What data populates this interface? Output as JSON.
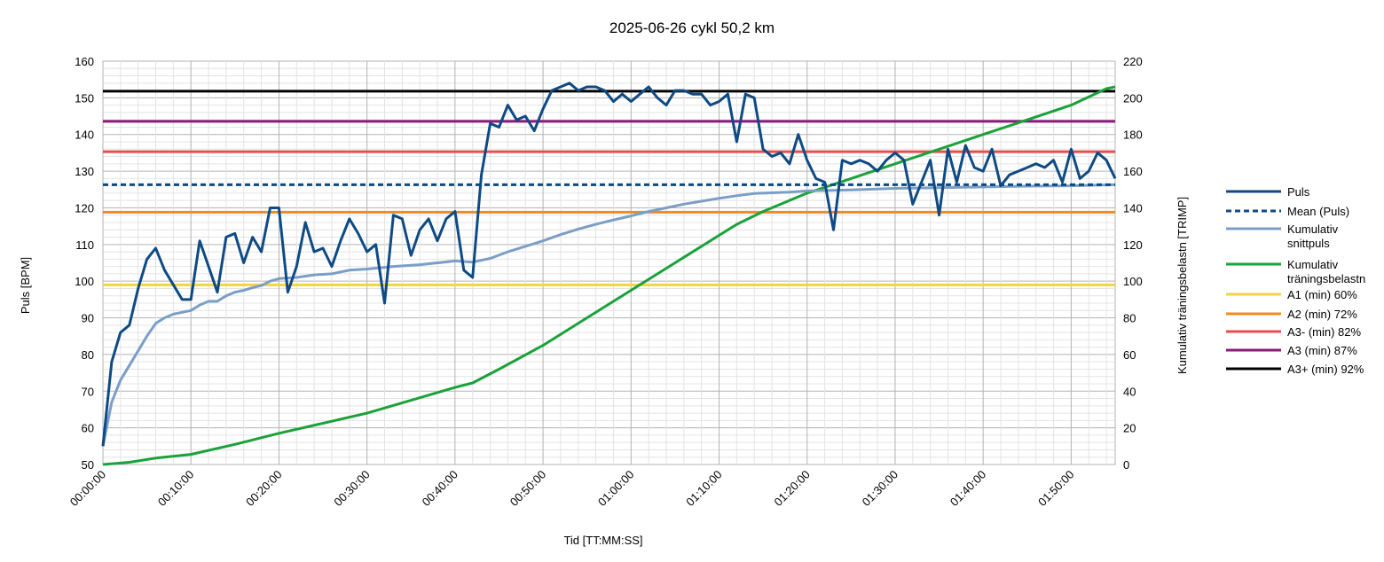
{
  "chart_data": {
    "type": "line",
    "title": "2025-06-26 cykl 50,2 km",
    "xlabel": "Tid [TT:MM:SS]",
    "ylabel": "Puls [BPM]",
    "y2label": "Kumulativ träningsbelastn [TRIMP]",
    "ylim": [
      50,
      160
    ],
    "y2lim": [
      0,
      220
    ],
    "xlim_minutes": [
      0,
      115
    ],
    "y_ticks": [
      "50",
      "60",
      "70",
      "80",
      "90",
      "100",
      "110",
      "120",
      "130",
      "140",
      "150",
      "160"
    ],
    "y2_ticks": [
      "0",
      "20",
      "40",
      "60",
      "80",
      "100",
      "120",
      "140",
      "160",
      "180",
      "200",
      "220"
    ],
    "x_ticks": [
      "00:00:00",
      "00:10:00",
      "00:20:00",
      "00:30:00",
      "00:40:00",
      "00:50:00",
      "01:00:00",
      "01:10:00",
      "01:20:00",
      "01:30:00",
      "01:40:00",
      "01:50:00"
    ],
    "grid": true,
    "legend_position": "right",
    "series": [
      {
        "name": "Puls",
        "axis": "left",
        "color": "#0e4a84",
        "style": "solid",
        "x": [
          0,
          1,
          2,
          3,
          4,
          5,
          6,
          7,
          8,
          9,
          10,
          11,
          12,
          13,
          14,
          15,
          16,
          17,
          18,
          19,
          20,
          21,
          22,
          23,
          24,
          25,
          26,
          27,
          28,
          29,
          30,
          31,
          32,
          33,
          34,
          35,
          36,
          37,
          38,
          39,
          40,
          41,
          42,
          43,
          44,
          45,
          46,
          47,
          48,
          49,
          50,
          51,
          52,
          53,
          54,
          55,
          56,
          57,
          58,
          59,
          60,
          61,
          62,
          63,
          64,
          65,
          66,
          67,
          68,
          69,
          70,
          71,
          72,
          73,
          74,
          75,
          76,
          77,
          78,
          79,
          80,
          81,
          82,
          83,
          84,
          85,
          86,
          87,
          88,
          89,
          90,
          91,
          92,
          93,
          94,
          95,
          96,
          97,
          98,
          99,
          100,
          101,
          102,
          103,
          104,
          105,
          106,
          107,
          108,
          109,
          110,
          111,
          112,
          113,
          114,
          115
        ],
        "y": [
          55,
          78,
          86,
          88,
          98,
          106,
          109,
          103,
          99,
          95,
          95,
          111,
          104,
          97,
          112,
          113,
          105,
          112,
          108,
          120,
          120,
          97,
          104,
          116,
          108,
          109,
          104,
          111,
          117,
          113,
          108,
          110,
          94,
          118,
          117,
          107,
          114,
          117,
          111,
          117,
          119,
          103,
          101,
          129,
          143,
          142,
          148,
          144,
          145,
          141,
          147,
          152,
          153,
          154,
          152,
          153,
          153,
          152,
          149,
          151,
          149,
          151,
          153,
          150,
          148,
          152,
          152,
          151,
          151,
          148,
          149,
          151,
          138,
          151,
          150,
          136,
          134,
          135,
          132,
          140,
          133,
          128,
          127,
          114,
          133,
          132,
          133,
          132,
          130,
          133,
          135,
          133,
          121,
          127,
          133,
          118,
          136,
          127,
          137,
          131,
          130,
          136,
          126,
          129,
          130,
          131,
          132,
          131,
          133,
          127,
          136,
          128,
          130,
          135,
          133,
          128
        ]
      },
      {
        "name": "Mean (Puls)",
        "axis": "left",
        "color": "#0e4a84",
        "style": "dashed",
        "constant": 126.3
      },
      {
        "name": "Kumulativ snittpuls",
        "axis": "left",
        "color": "#7b9ec7",
        "style": "solid",
        "x": [
          0,
          1,
          2,
          3,
          4,
          5,
          6,
          7,
          8,
          9,
          10,
          11,
          12,
          13,
          14,
          15,
          16,
          17,
          18,
          19,
          20,
          22,
          24,
          26,
          28,
          30,
          33,
          36,
          40,
          42,
          44,
          46,
          48,
          50,
          52,
          54,
          56,
          58,
          60,
          62,
          64,
          66,
          68,
          70,
          72,
          74,
          76,
          78,
          80,
          85,
          90,
          95,
          100,
          105,
          110,
          115
        ],
        "y": [
          55,
          67,
          73,
          77,
          81,
          85,
          88.5,
          90,
          91,
          91.5,
          92,
          93.5,
          94.5,
          94.5,
          96,
          97,
          97.5,
          98.2,
          98.8,
          100,
          100.7,
          101,
          101.7,
          102,
          103,
          103.3,
          104,
          104.5,
          105.5,
          105.2,
          106.2,
          108,
          109.5,
          111,
          112.7,
          114.2,
          115.5,
          116.7,
          117.8,
          119,
          120,
          121,
          121.8,
          122.6,
          123.3,
          123.9,
          124.1,
          124.3,
          124.6,
          124.9,
          125.3,
          125.5,
          125.7,
          125.9,
          126.0,
          126.3
        ]
      },
      {
        "name": "Kumulativ träningsbelastn",
        "axis": "right",
        "color": "#1aa23a",
        "style": "solid",
        "x": [
          0,
          3,
          6,
          10,
          15,
          20,
          25,
          30,
          35,
          40,
          42,
          45,
          50,
          55,
          60,
          65,
          70,
          72,
          75,
          80,
          85,
          90,
          95,
          100,
          105,
          110,
          114,
          115
        ],
        "y": [
          0,
          1.2,
          3.5,
          5.5,
          11,
          17,
          22.5,
          28,
          35,
          42,
          44.5,
          52,
          65,
          80,
          95,
          110,
          125,
          131,
          138,
          148,
          156,
          164,
          172,
          180,
          188,
          196,
          205,
          206
        ]
      },
      {
        "name": "A1 (min) 60%",
        "axis": "left",
        "color": "#f2d541",
        "style": "solid",
        "constant": 99
      },
      {
        "name": "A2 (min) 72%",
        "axis": "left",
        "color": "#f18b21",
        "style": "solid",
        "constant": 118.8
      },
      {
        "name": "A3- (min) 82%",
        "axis": "left",
        "color": "#ec4b4b",
        "style": "solid",
        "constant": 135.3
      },
      {
        "name": "A3 (min) 87%",
        "axis": "left",
        "color": "#8b1a78",
        "style": "solid",
        "constant": 143.6
      },
      {
        "name": "A3+ (min) 92%",
        "axis": "left",
        "color": "#000000",
        "style": "solid",
        "constant": 151.8
      }
    ]
  },
  "legend": {
    "items": [
      {
        "lines": [
          "Puls"
        ],
        "color": "#0e4a84",
        "style": "solid"
      },
      {
        "lines": [
          "Mean (Puls)"
        ],
        "color": "#0e4a84",
        "style": "dashed"
      },
      {
        "lines": [
          "Kumulativ",
          "snittpuls"
        ],
        "color": "#7b9ec7",
        "style": "solid"
      },
      {
        "lines": [
          "Kumulativ",
          "träningsbelastn"
        ],
        "color": "#1aa23a",
        "style": "solid"
      },
      {
        "lines": [
          "A1 (min) 60%"
        ],
        "color": "#f2d541",
        "style": "solid"
      },
      {
        "lines": [
          "A2 (min) 72%"
        ],
        "color": "#f18b21",
        "style": "solid"
      },
      {
        "lines": [
          "A3- (min) 82%"
        ],
        "color": "#ec4b4b",
        "style": "solid"
      },
      {
        "lines": [
          "A3 (min) 87%"
        ],
        "color": "#8b1a78",
        "style": "solid"
      },
      {
        "lines": [
          "A3+ (min) 92%"
        ],
        "color": "#000000",
        "style": "solid"
      }
    ]
  }
}
